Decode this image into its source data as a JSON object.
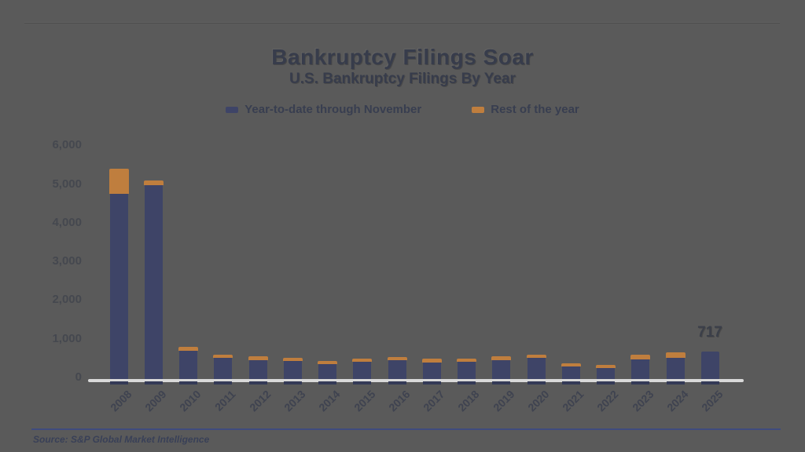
{
  "colors": {
    "background": "#5a5a5a",
    "bar_blue": "#3e4467",
    "bar_orange": "#bf7e3e",
    "axis_line": "#d9d9d9",
    "rule_blue": "#3f4b7e"
  },
  "source": {
    "text": "Source: S&P Global Market Intelligence"
  },
  "chart_data": {
    "type": "bar",
    "stacked": true,
    "title": "Bankruptcy Filings Soar",
    "subtitle": "U.S. Bankruptcy Filings By Year",
    "legend_position": "top",
    "grid": false,
    "ylim": [
      0,
      6000
    ],
    "yticks": [
      {
        "label": "6,000",
        "value": 6000
      },
      {
        "label": "5,000",
        "value": 5000
      },
      {
        "label": "4,000",
        "value": 4000
      },
      {
        "label": "3,000",
        "value": 3000
      },
      {
        "label": "2,000",
        "value": 2000
      },
      {
        "label": "1,000",
        "value": 1000
      },
      {
        "label": "0",
        "value": 0
      }
    ],
    "categories": [
      "2008",
      "2009",
      "2010",
      "2011",
      "2012",
      "2013",
      "2014",
      "2015",
      "2016",
      "2017",
      "2018",
      "2019",
      "2020",
      "2021",
      "2022",
      "2023",
      "2024",
      "2025"
    ],
    "series": [
      {
        "name": "Year-to-date through November",
        "color": "#3e4467",
        "values": [
          4780,
          5010,
          728,
          540,
          486,
          462,
          380,
          438,
          480,
          436,
          444,
          486,
          538,
          318,
          290,
          510,
          548,
          717
        ]
      },
      {
        "name": "Rest of the year",
        "color": "#bf7e3e",
        "values": [
          660,
          130,
          100,
          94,
          100,
          95,
          91,
          86,
          94,
          84,
          74,
          101,
          92,
          87,
          83,
          124,
          146,
          0
        ]
      }
    ],
    "annotations": [
      {
        "category": "2025",
        "text": "717"
      }
    ]
  }
}
